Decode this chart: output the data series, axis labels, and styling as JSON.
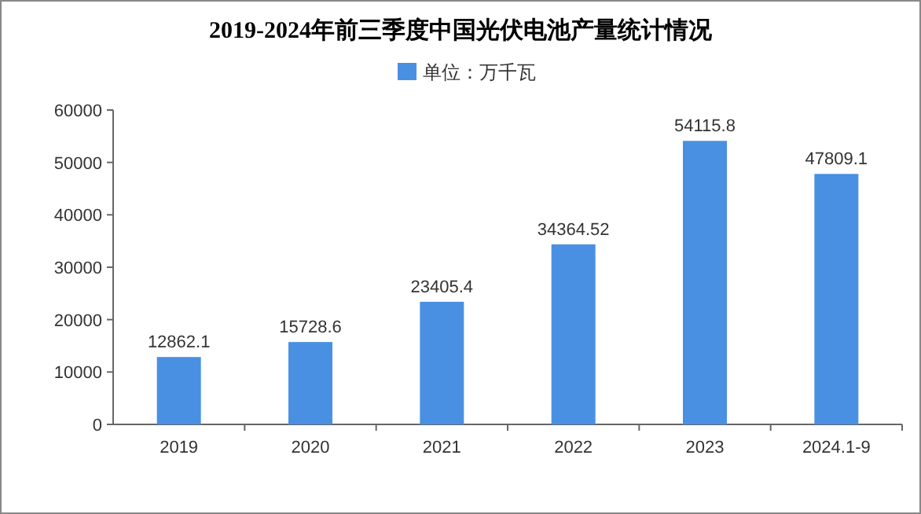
{
  "chart_data": {
    "type": "bar",
    "title": "2019-2024年前三季度中国光伏电池产量统计情况",
    "categories": [
      "2019",
      "2020",
      "2021",
      "2022",
      "2023",
      "2024.1-9"
    ],
    "series": [
      {
        "name": "单位：万千瓦",
        "color": "#4a90e2",
        "values": [
          12862.1,
          15728.6,
          23405.4,
          34364.52,
          54115.8,
          47809.1
        ]
      }
    ],
    "ylim": [
      0,
      60000
    ],
    "yticks": [
      0,
      10000,
      20000,
      30000,
      40000,
      50000,
      60000
    ],
    "data_labels": true,
    "legend": "top",
    "grid": false
  }
}
